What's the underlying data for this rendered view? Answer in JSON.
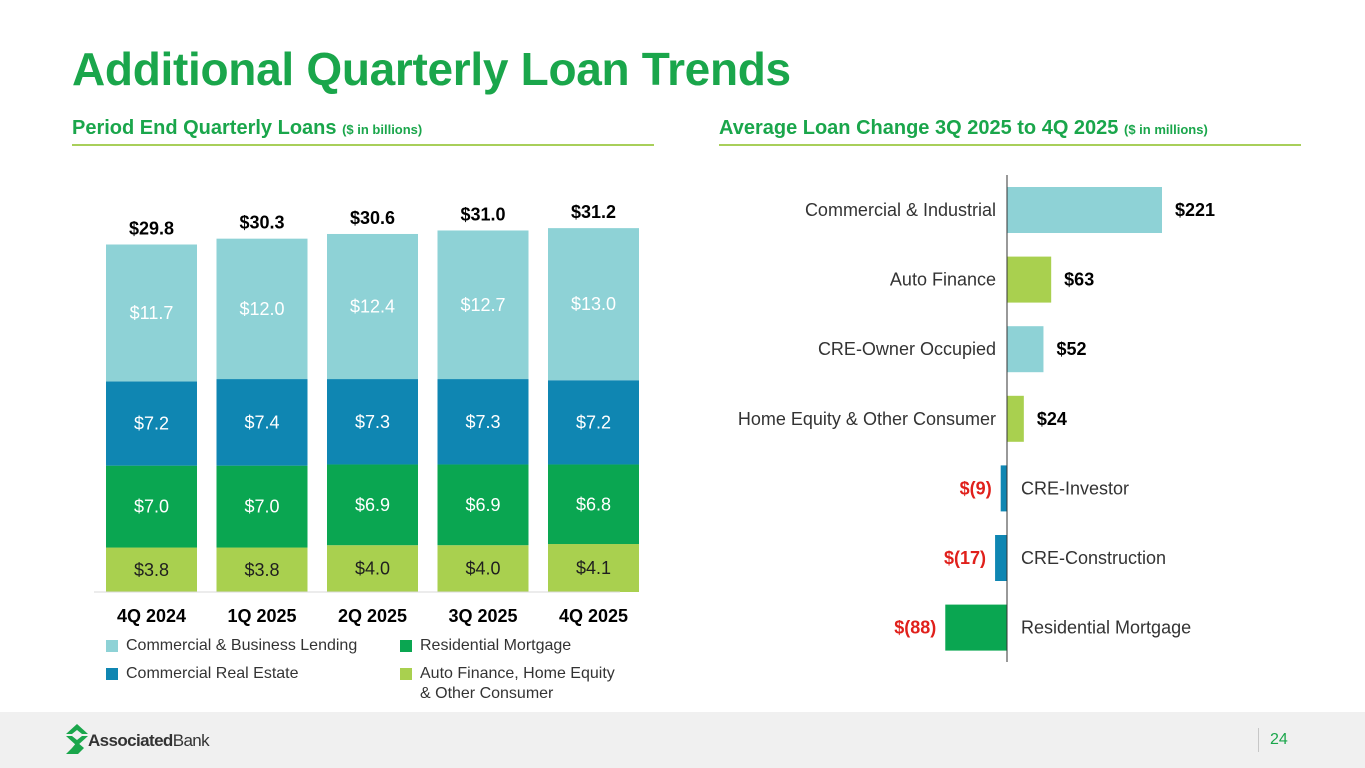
{
  "title": "Additional Quarterly Loan Trends",
  "left_subtitle": {
    "main": "Period End Quarterly Loans",
    "unit": "($ in billions)"
  },
  "right_subtitle": {
    "main": "Average Loan Change 3Q 2025 to 4Q 2025",
    "unit": "($ in millions)"
  },
  "colors": {
    "title_green": "#1aa64b",
    "cbl": "#8ed2d6",
    "cre": "#0f86b2",
    "resmort": "#0aa651",
    "auto": "#a9d04f"
  },
  "chart_data": [
    {
      "type": "bar",
      "stacked": true,
      "title": "Period End Quarterly Loans ($ in billions)",
      "categories": [
        "4Q 2024",
        "1Q 2025",
        "2Q 2025",
        "3Q 2025",
        "4Q 2025"
      ],
      "totals": [
        29.8,
        30.3,
        30.6,
        31.0,
        31.2
      ],
      "total_labels": [
        "$29.8",
        "$30.3",
        "$30.6",
        "$31.0",
        "$31.2"
      ],
      "series": [
        {
          "name": "Auto Finance, Home Equity & Other Consumer",
          "color_key": "auto",
          "values": [
            3.8,
            3.8,
            4.0,
            4.0,
            4.1
          ],
          "labels": [
            "$3.8",
            "$3.8",
            "$4.0",
            "$4.0",
            "$4.1"
          ]
        },
        {
          "name": "Residential Mortgage",
          "color_key": "resmort",
          "values": [
            7.0,
            7.0,
            6.9,
            6.9,
            6.8
          ],
          "labels": [
            "$7.0",
            "$7.0",
            "$6.9",
            "$6.9",
            "$6.8"
          ]
        },
        {
          "name": "Commercial Real Estate",
          "color_key": "cre",
          "values": [
            7.2,
            7.4,
            7.3,
            7.3,
            7.2
          ],
          "labels": [
            "$7.2",
            "$7.4",
            "$7.3",
            "$7.3",
            "$7.2"
          ]
        },
        {
          "name": "Commercial & Business Lending",
          "color_key": "cbl",
          "values": [
            11.7,
            12.0,
            12.4,
            12.7,
            13.0
          ],
          "labels": [
            "$11.7",
            "$12.0",
            "$12.4",
            "$12.7",
            "$13.0"
          ]
        }
      ],
      "legend": [
        {
          "label": "Commercial & Business Lending",
          "color_key": "cbl"
        },
        {
          "label": "Residential Mortgage",
          "color_key": "resmort"
        },
        {
          "label": "Commercial Real Estate",
          "color_key": "cre"
        },
        {
          "label": "Auto Finance, Home Equity",
          "label2": "& Other Consumer",
          "color_key": "auto"
        }
      ],
      "ylim": [
        0,
        32
      ]
    },
    {
      "type": "bar",
      "orientation": "horizontal",
      "title": "Average Loan Change 3Q 2025 to 4Q 2025 ($ in millions)",
      "categories": [
        "Commercial & Industrial",
        "Auto Finance",
        "CRE-Owner Occupied",
        "Home Equity & Other Consumer",
        "CRE-Investor",
        "CRE-Construction",
        "Residential Mortgage"
      ],
      "values": [
        221,
        63,
        52,
        24,
        -9,
        -17,
        -88
      ],
      "labels": [
        "$221",
        "$63",
        "$52",
        "$24",
        "$(9)",
        "$(17)",
        "$(88)"
      ],
      "color_keys": [
        "cbl",
        "auto",
        "cbl",
        "auto",
        "cre",
        "cre",
        "resmort"
      ]
    }
  ],
  "footer": {
    "brand_bold": "Associated",
    "brand_rest": "Bank",
    "page": "24"
  }
}
